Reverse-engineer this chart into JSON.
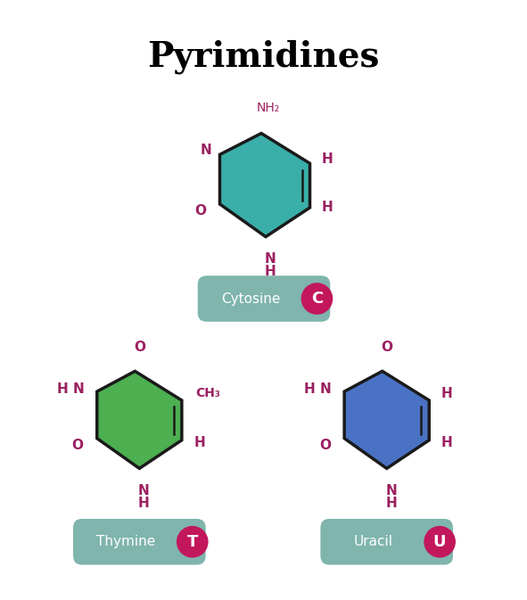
{
  "title": "Pyrimidines",
  "title_fontsize": 28,
  "title_fontweight": "bold",
  "bg_color": "#ffffff",
  "atom_color": "#9b2060",
  "cytosine_color": "#3aafa9",
  "thymine_color": "#4caf50",
  "uracil_color": "#4a72c4",
  "badge_bg": "#7fb5ac",
  "badge_circle": "#c2185b",
  "badge_text": "#ffffff",
  "ring_edge": "#1a1a1a",
  "cytosine_label": "Cytosine",
  "cytosine_letter": "C",
  "thymine_label": "Thymine",
  "thymine_letter": "T",
  "uracil_label": "Uracil",
  "uracil_letter": "U"
}
